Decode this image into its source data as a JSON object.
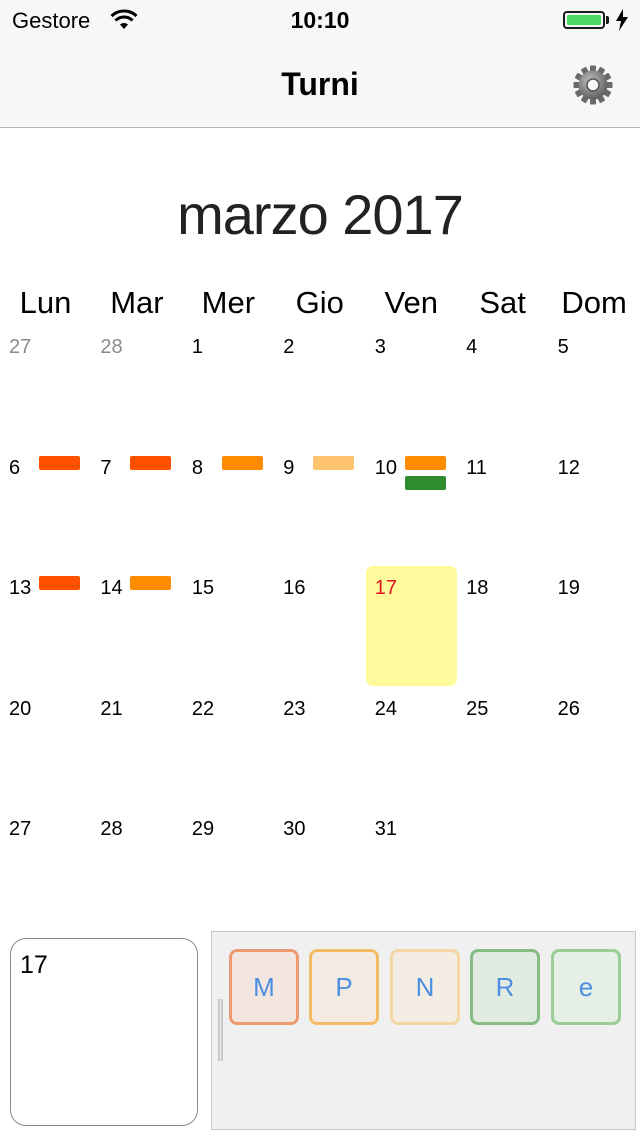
{
  "status_bar": {
    "carrier": "Gestore",
    "time": "10:10",
    "battery_level": 1.0,
    "battery_color": "#4cd964"
  },
  "nav_bar": {
    "title": "Turni",
    "settings_icon": "gear-icon"
  },
  "calendar": {
    "month_title": "marzo 2017",
    "weekdays": [
      "Lun",
      "Mar",
      "Mer",
      "Gio",
      "Ven",
      "Sat",
      "Dom"
    ],
    "weeks": [
      [
        {
          "day": "27",
          "outside": true
        },
        {
          "day": "28",
          "outside": true
        },
        {
          "day": "1"
        },
        {
          "day": "2"
        },
        {
          "day": "3"
        },
        {
          "day": "4"
        },
        {
          "day": "5"
        }
      ],
      [
        {
          "day": "6",
          "marks": [
            "#ff5000"
          ]
        },
        {
          "day": "7",
          "marks": [
            "#ff5000"
          ]
        },
        {
          "day": "8",
          "marks": [
            "#ff8c00"
          ]
        },
        {
          "day": "9",
          "marks": [
            "#ffc46e"
          ]
        },
        {
          "day": "10",
          "marks": [
            "#ff8c00",
            "#2e8b2e"
          ]
        },
        {
          "day": "11"
        },
        {
          "day": "12"
        }
      ],
      [
        {
          "day": "13",
          "marks": [
            "#ff5000"
          ]
        },
        {
          "day": "14",
          "marks": [
            "#ff8c00"
          ]
        },
        {
          "day": "15"
        },
        {
          "day": "16"
        },
        {
          "day": "17",
          "today": true
        },
        {
          "day": "18"
        },
        {
          "day": "19"
        }
      ],
      [
        {
          "day": "20"
        },
        {
          "day": "21"
        },
        {
          "day": "22"
        },
        {
          "day": "23"
        },
        {
          "day": "24"
        },
        {
          "day": "25"
        },
        {
          "day": "26"
        }
      ],
      [
        {
          "day": "27"
        },
        {
          "day": "28"
        },
        {
          "day": "29"
        },
        {
          "day": "30"
        },
        {
          "day": "31"
        }
      ]
    ],
    "today_color": "#fffb9d"
  },
  "note": {
    "text": "17"
  },
  "shift_panel": {
    "buttons": [
      {
        "label": "M",
        "border": "#ee9a70",
        "bg": "#f3e6e1"
      },
      {
        "label": "P",
        "border": "#f3bb63",
        "bg": "#f3ebe1"
      },
      {
        "label": "N",
        "border": "#f4d6a4",
        "bg": "#f3ede3"
      },
      {
        "label": "R",
        "border": "#85bd84",
        "bg": "#e1ebe1"
      },
      {
        "label": "e",
        "border": "#99cf97",
        "bg": "#e6efe6"
      }
    ]
  }
}
